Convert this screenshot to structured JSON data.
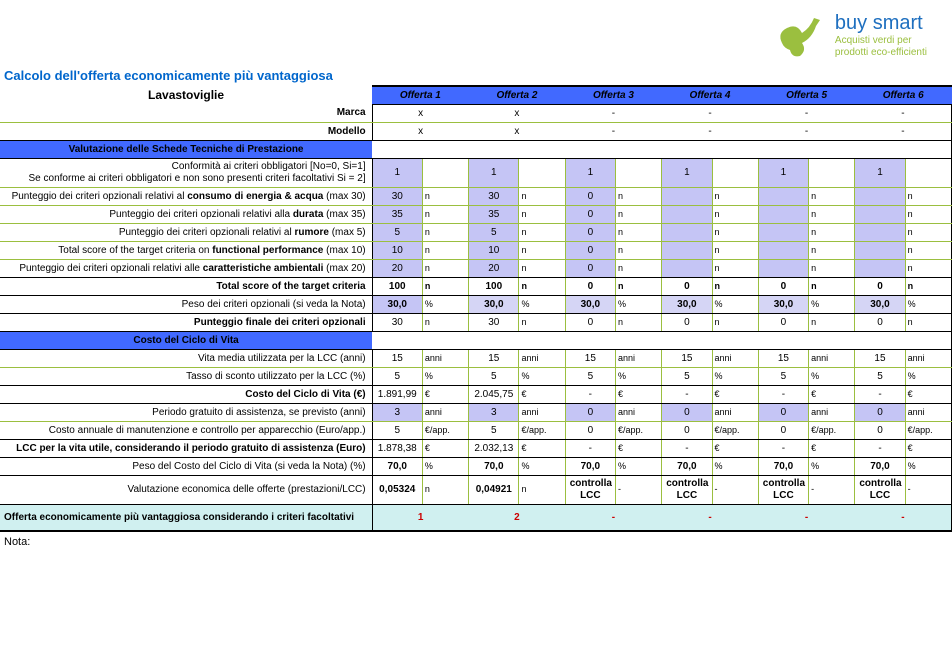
{
  "logo": {
    "title": "buy smart",
    "sub1": "Acquisti verdi per",
    "sub2": "prodotti eco-efficienti"
  },
  "title": "Calcolo dell'offerta economicamente più vantaggiosa",
  "header": {
    "product": "Lavastoviglie",
    "offers": [
      "Offerta 1",
      "Offerta 2",
      "Offerta 3",
      "Offerta 4",
      "Offerta 5",
      "Offerta 6"
    ]
  },
  "rows": {
    "marca": {
      "label": "Marca",
      "vals": [
        "x",
        "x",
        "-",
        "-",
        "-",
        "-"
      ]
    },
    "modello": {
      "label": "Modello",
      "vals": [
        "x",
        "x",
        "-",
        "-",
        "-",
        "-"
      ]
    },
    "section1": "Valutazione delle Schede Tecniche di Prestazione",
    "conform": {
      "label": "Conformità ai criteri obbligatori [No=0, Si=1]\nSe conforme ai criteri obbligatori e non sono presenti criteri facoltativi Si = 2]",
      "vals": [
        "1",
        "1",
        "1",
        "1",
        "1",
        "1"
      ]
    },
    "energia": {
      "label": "Punteggio dei criteri opzionali relativi al <b>consumo di energia & acqua</b> (max 30)",
      "vals": [
        "30",
        "30",
        "0",
        "",
        "",
        ""
      ],
      "units": [
        "n",
        "n",
        "n",
        "n",
        "n",
        "n"
      ]
    },
    "durata": {
      "label": "Punteggio dei criteri opzionali relativi alla <b>durata</b> (max 35)",
      "vals": [
        "35",
        "35",
        "0",
        "",
        "",
        ""
      ],
      "units": [
        "n",
        "n",
        "n",
        "n",
        "n",
        "n"
      ]
    },
    "rumore": {
      "label": "Punteggio dei criteri opzionali relativi al <b>rumore</b> (max 5)",
      "vals": [
        "5",
        "5",
        "0",
        "",
        "",
        ""
      ],
      "units": [
        "n",
        "n",
        "n",
        "n",
        "n",
        "n"
      ]
    },
    "funcperf": {
      "label": "Total score of the target criteria on <b>functional performance</b> (max 10)",
      "vals": [
        "10",
        "10",
        "0",
        "",
        "",
        ""
      ],
      "units": [
        "n",
        "n",
        "n",
        "n",
        "n",
        "n"
      ]
    },
    "ambient": {
      "label": "Punteggio dei criteri opzionali relativi alle <b>caratteristiche ambientali</b> (max 20)",
      "vals": [
        "20",
        "20",
        "0",
        "",
        "",
        ""
      ],
      "units": [
        "n",
        "n",
        "n",
        "n",
        "n",
        "n"
      ]
    },
    "totscore": {
      "label": "Total score of the target criteria",
      "vals": [
        "100",
        "100",
        "0",
        "0",
        "0",
        "0"
      ],
      "units": [
        "n",
        "n",
        "n",
        "n",
        "n",
        "n"
      ]
    },
    "peso": {
      "label": "Peso dei criteri opzionali (si veda la Nota)",
      "vals": [
        "30,0",
        "30,0",
        "30,0",
        "30,0",
        "30,0",
        "30,0"
      ],
      "units": [
        "%",
        "%",
        "%",
        "%",
        "%",
        "%"
      ]
    },
    "puntfin": {
      "label": "Punteggio finale dei criteri opzionali",
      "vals": [
        "30",
        "30",
        "0",
        "0",
        "0",
        "0"
      ],
      "units": [
        "n",
        "n",
        "n",
        "n",
        "n",
        "n"
      ]
    },
    "section2": "Costo del Ciclo di Vita",
    "vita": {
      "label": "Vita media utilizzata per la LCC (anni)",
      "vals": [
        "15",
        "15",
        "15",
        "15",
        "15",
        "15"
      ],
      "units": [
        "anni",
        "anni",
        "anni",
        "anni",
        "anni",
        "anni"
      ]
    },
    "tasso": {
      "label": "Tasso di sconto utilizzato per la LCC (%)",
      "vals": [
        "5",
        "5",
        "5",
        "5",
        "5",
        "5"
      ],
      "units": [
        "%",
        "%",
        "%",
        "%",
        "%",
        "%"
      ]
    },
    "ccv": {
      "label": "Costo del Ciclo di Vita (€)",
      "vals": [
        "1.891,99",
        "2.045,75",
        "-",
        "-",
        "-",
        "-"
      ],
      "units": [
        "€",
        "€",
        "€",
        "€",
        "€",
        "€"
      ]
    },
    "periodo": {
      "label": "Periodo gratuito di assistenza, se previsto (anni)",
      "vals": [
        "3",
        "3",
        "0",
        "0",
        "0",
        "0"
      ],
      "units": [
        "anni",
        "anni",
        "anni",
        "anni",
        "anni",
        "anni"
      ]
    },
    "manut": {
      "label": "Costo annuale di manutenzione e controllo per apparecchio (Euro/app.)",
      "vals": [
        "5",
        "5",
        "0",
        "0",
        "0",
        "0"
      ],
      "units": [
        "€/app.",
        "€/app.",
        "€/app.",
        "€/app.",
        "€/app.",
        "€/app."
      ]
    },
    "lcc": {
      "label": "LCC per la vita utile, considerando il periodo gratuito di assistenza (Euro)",
      "vals": [
        "1.878,38",
        "2.032,13",
        "-",
        "-",
        "-",
        "-"
      ],
      "units": [
        "€",
        "€",
        "€",
        "€",
        "€",
        "€"
      ]
    },
    "pesoccv": {
      "label": "Peso del Costo del Ciclo di Vita (si veda la Nota) (%)",
      "vals": [
        "70,0",
        "70,0",
        "70,0",
        "70,0",
        "70,0",
        "70,0"
      ],
      "units": [
        "%",
        "%",
        "%",
        "%",
        "%",
        "%"
      ]
    },
    "valecon": {
      "label": "Valutazione economica delle offerte (prestazioni/LCC)",
      "vals": [
        "0,05324",
        "0,04921",
        "controlla LCC",
        "controlla LCC",
        "controlla LCC",
        "controlla LCC"
      ],
      "units": [
        "n",
        "n",
        "-",
        "-",
        "-",
        "-"
      ]
    },
    "final": {
      "label": "Offerta economicamente più vantaggiosa considerando i criteri facoltativi",
      "vals": [
        "1",
        "2",
        "-",
        "-",
        "-",
        "-"
      ]
    }
  },
  "nota": "Nota:"
}
